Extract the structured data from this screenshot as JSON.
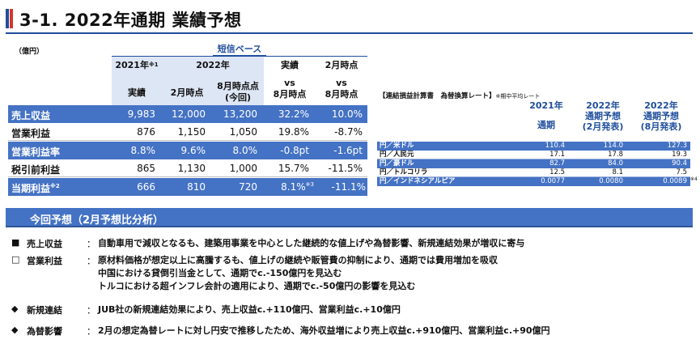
{
  "title": "3-1. 2022年通期 業績予想",
  "unit": "（億円）",
  "basis": "短信ベース",
  "headers": {
    "y2021": "2021年",
    "y2021_note": "※1",
    "y2021_sub": "実績",
    "y2022": "2022年",
    "feb": "2月時点",
    "aug1": "8月時点点",
    "aug2": "(今回)",
    "actual_vs": "実績",
    "vs": "vs",
    "aug3": "8月時点",
    "feb_vs": "2月時点",
    "vs2": "vs",
    "aug4": "8月時点"
  },
  "rows": [
    {
      "label": "売上収益",
      "label_note": "",
      "a": "9,983",
      "b": "12,000",
      "c": "13,200",
      "d": "32.2%",
      "d_note": "",
      "e": "10.0%"
    },
    {
      "label": "営業利益",
      "label_note": "",
      "a": "876",
      "b": "1,150",
      "c": "1,050",
      "d": "19.8%",
      "d_note": "",
      "e": "-8.7%"
    },
    {
      "label": "営業利益率",
      "label_note": "",
      "a": "8.8%",
      "b": "9.6%",
      "c": "8.0%",
      "d": "-0.8pt",
      "d_note": "",
      "e": "-1.6pt"
    },
    {
      "label": "税引前利益",
      "label_note": "",
      "a": "865",
      "b": "1,130",
      "c": "1,000",
      "d": "15.7%",
      "d_note": "",
      "e": "-11.5%"
    },
    {
      "label": "当期利益",
      "label_note": "※2",
      "a": "666",
      "b": "810",
      "c": "720",
      "d": "8.1%",
      "d_note": "※3",
      "e": "-11.1%"
    }
  ],
  "fx": {
    "caption": "【連結損益計算書　為替換算レート】",
    "caption_note": "※期中平均レート",
    "h1a": "2021年",
    "h1b": "通期",
    "h2a": "2022年",
    "h2b": "通期予想",
    "h2c": "(2月発表)",
    "h3a": "2022年",
    "h3b": "通期予想",
    "h3c": "(8月発表)",
    "rows": [
      {
        "label": "円／米ドル",
        "a": "110.4",
        "b": "114.0",
        "c": "127.3"
      },
      {
        "label": "円／人民元",
        "a": "17.1",
        "b": "17.8",
        "c": "19.3"
      },
      {
        "label": "円／豪ドル",
        "a": "82.7",
        "b": "84.0",
        "c": "90.4"
      },
      {
        "label": "円／トルコリラ",
        "a": "12.5",
        "b": "8.1",
        "c": "7.5"
      },
      {
        "label": "円／インドネシアルピア",
        "a": "0.0077",
        "b": "0.0080",
        "c": "0.0089"
      }
    ],
    "note4": "※4"
  },
  "section": "今回予想（2月予想比分析）",
  "items": [
    {
      "bullet": "■",
      "label": "売上収益",
      "colon": "：",
      "lines": [
        "自動車用で減収となるも、建築用事業を中心とした継続的な値上げや為替影響、新規連結効果が増収に寄与"
      ]
    },
    {
      "bullet": "□",
      "label": "営業利益",
      "colon": "：",
      "lines": [
        "原材料価格が想定以上に高騰するも、値上げの継続や販管費の抑制により、通期では費用増加を吸収",
        "中国における貸倒引当金として、通期でc.-150億円を見込む",
        "トルコにおける超インフレ会計の適用により、通期でc.-50億円の影響を見込む"
      ]
    },
    {
      "bullet": "◆",
      "label": "新規連結",
      "colon": "：",
      "lines": [
        "JUB社の新規連結効果により、売上収益c.+110億円、営業利益c.+10億円"
      ]
    },
    {
      "bullet": "◆",
      "label": "為替影響",
      "colon": "：",
      "lines": [
        "2月の想定為替レートに対し円安で推移したため、海外収益増により売上収益c.+910億円、営業利益c.+90億円"
      ]
    }
  ]
}
